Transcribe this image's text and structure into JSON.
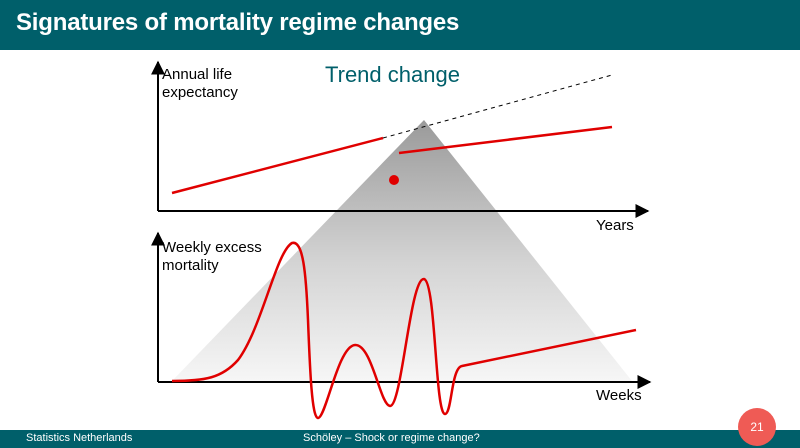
{
  "slide": {
    "title": "Signatures of mortality regime changes",
    "page_number": "21"
  },
  "footer": {
    "organization": "Statistics Netherlands",
    "presentation": "Schöley – Shock or regime change?"
  },
  "top_panel": {
    "heading": "Trend change",
    "y_label_line1": "Annual life",
    "y_label_line2": "expectancy",
    "x_label": "Years"
  },
  "bottom_panel": {
    "y_label_line1": "Weekly excess",
    "y_label_line2": "mortality",
    "x_label": "Weeks"
  },
  "colors": {
    "brand": "#005f6a",
    "accent_line": "#e00000",
    "badge": "#ef5b55"
  }
}
